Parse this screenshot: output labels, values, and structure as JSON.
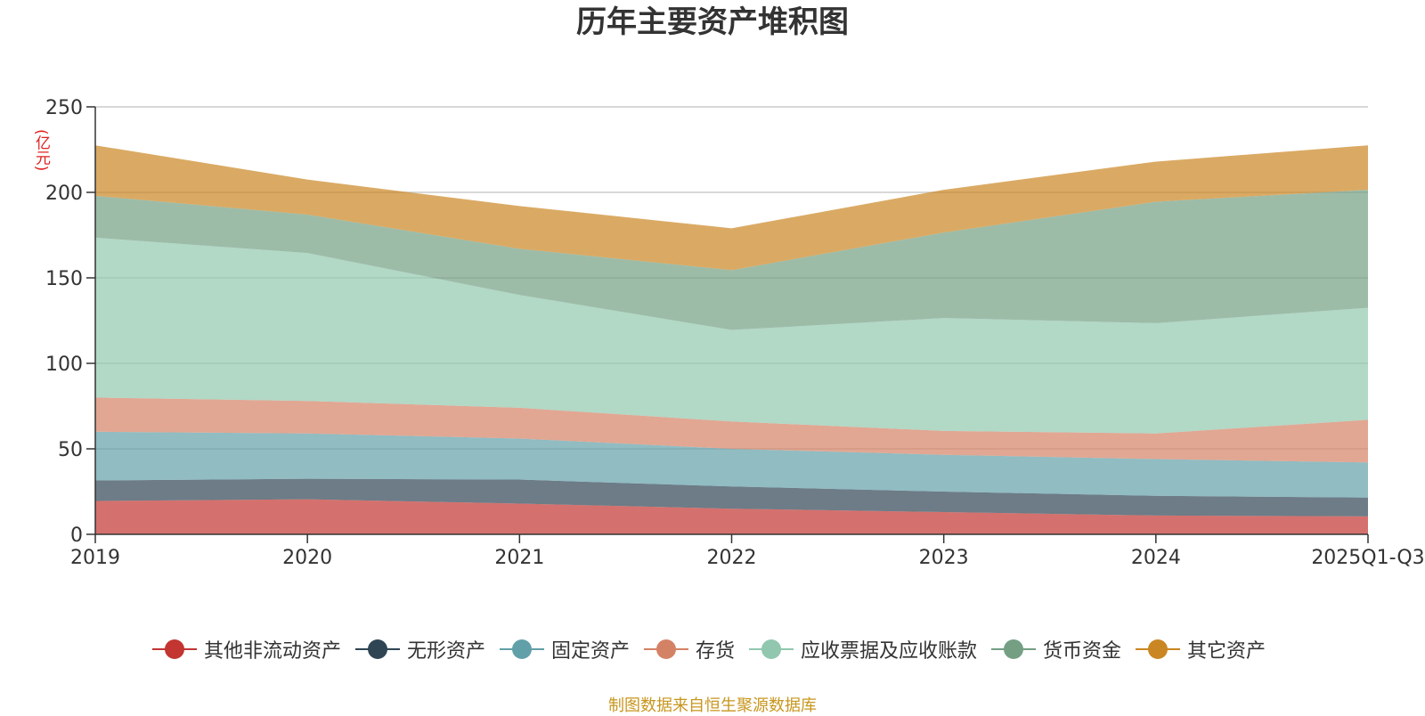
{
  "chart_data": {
    "type": "area",
    "stacked": true,
    "title": "历年主要资产堆积图",
    "unit": "(亿元)",
    "categories": [
      "2019",
      "2020",
      "2021",
      "2022",
      "2023",
      "2024",
      "2025Q1-Q3"
    ],
    "ylim": [
      0,
      250
    ],
    "yticks": [
      0,
      50,
      100,
      150,
      200,
      250
    ],
    "grid": true,
    "legend_position": "bottom",
    "series": [
      {
        "name": "其他非流动资产",
        "color": "#c23531",
        "values": [
          19.5,
          20.5,
          18,
          15,
          13,
          11,
          10.5
        ]
      },
      {
        "name": "无形资产",
        "color": "#2f4554",
        "values": [
          12,
          12,
          14,
          13,
          12,
          11.5,
          11
        ]
      },
      {
        "name": "固定资产",
        "color": "#61a0a8",
        "values": [
          28.5,
          26.5,
          24,
          22,
          21.5,
          21.5,
          20.5
        ]
      },
      {
        "name": "存货",
        "color": "#d48265",
        "values": [
          20,
          19,
          18,
          16,
          14,
          15,
          25
        ]
      },
      {
        "name": "应收票据及应收账款",
        "color": "#91c7ae",
        "values": [
          93.5,
          86.5,
          66,
          53.5,
          66,
          64.5,
          65.5
        ]
      },
      {
        "name": "货币资金",
        "color": "#749f83",
        "values": [
          24.5,
          22.5,
          27,
          35,
          50,
          71,
          69
        ]
      },
      {
        "name": "其它资产",
        "color": "#ca8622",
        "values": [
          29.5,
          20.5,
          25,
          24.5,
          25,
          23.5,
          26
        ]
      }
    ]
  },
  "source_note": "制图数据来自恒生聚源数据库"
}
